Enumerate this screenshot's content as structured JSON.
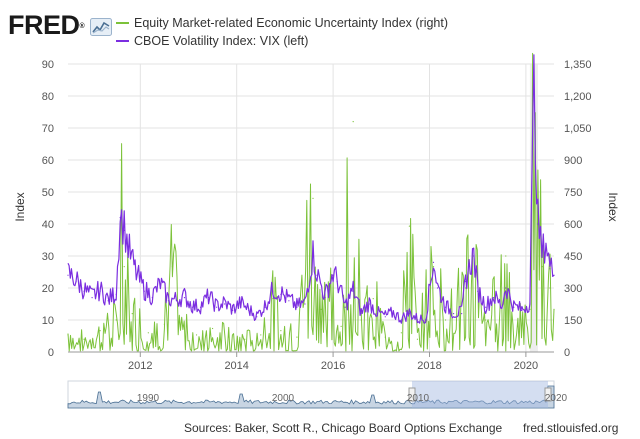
{
  "brand": {
    "logo_text": "FRED",
    "logo_mark": "®"
  },
  "legend": [
    {
      "label": "Equity Market-related Economic Uncertainty Index (right)",
      "color": "#7cc23a"
    },
    {
      "label": "CBOE Volatility Index: VIX (left)",
      "color": "#7b2ee0"
    }
  ],
  "footer": {
    "source": "Sources: Baker, Scott R., Chicago Board Options Exchange",
    "site": "fred.stlouisfed.org"
  },
  "chart_data": {
    "type": "line",
    "x_range": [
      "2010-07",
      "2020-08"
    ],
    "x_ticks": [
      "2012",
      "2014",
      "2016",
      "2018",
      "2020"
    ],
    "y_left": {
      "label": "Index",
      "range": [
        0,
        90
      ],
      "ticks": [
        "0",
        "10",
        "20",
        "30",
        "40",
        "50",
        "60",
        "70",
        "80",
        "90"
      ]
    },
    "y_right": {
      "label": "Index",
      "range": [
        0,
        1350
      ],
      "ticks": [
        "0",
        "150",
        "300",
        "450",
        "600",
        "750",
        "900",
        "1,050",
        "1,200",
        "1,350"
      ]
    },
    "grid": true,
    "navigator": {
      "labels": [
        "1990",
        "2000",
        "2010",
        "2020"
      ]
    },
    "series": [
      {
        "name": "CBOE Volatility Index: VIX (left)",
        "axis": "left",
        "color": "#7b2ee0",
        "points": [
          [
            "2010-07",
            24
          ],
          [
            "2010-09",
            22
          ],
          [
            "2010-11",
            19
          ],
          [
            "2011-01",
            17
          ],
          [
            "2011-03",
            19
          ],
          [
            "2011-05",
            16
          ],
          [
            "2011-07",
            18
          ],
          [
            "2011-08",
            42
          ],
          [
            "2011-09",
            38
          ],
          [
            "2011-10",
            32
          ],
          [
            "2011-12",
            24
          ],
          [
            "2012-02",
            19
          ],
          [
            "2012-04",
            17
          ],
          [
            "2012-06",
            21
          ],
          [
            "2012-08",
            16
          ],
          [
            "2012-10",
            16
          ],
          [
            "2012-12",
            17
          ],
          [
            "2013-02",
            14
          ],
          [
            "2013-04",
            14
          ],
          [
            "2013-06",
            17
          ],
          [
            "2013-08",
            14
          ],
          [
            "2013-10",
            15
          ],
          [
            "2013-12",
            13
          ],
          [
            "2014-02",
            15
          ],
          [
            "2014-04",
            13
          ],
          [
            "2014-06",
            11
          ],
          [
            "2014-08",
            14
          ],
          [
            "2014-10",
            19
          ],
          [
            "2014-12",
            18
          ],
          [
            "2015-02",
            16
          ],
          [
            "2015-04",
            14
          ],
          [
            "2015-06",
            15
          ],
          [
            "2015-08",
            30
          ],
          [
            "2015-09",
            24
          ],
          [
            "2015-11",
            17
          ],
          [
            "2016-01",
            24
          ],
          [
            "2016-02",
            22
          ],
          [
            "2016-04",
            14
          ],
          [
            "2016-06",
            19
          ],
          [
            "2016-08",
            12
          ],
          [
            "2016-10",
            15
          ],
          [
            "2016-12",
            12
          ],
          [
            "2017-02",
            11
          ],
          [
            "2017-04",
            12
          ],
          [
            "2017-06",
            10
          ],
          [
            "2017-08",
            12
          ],
          [
            "2017-10",
            10
          ],
          [
            "2017-12",
            10
          ],
          [
            "2018-02",
            28
          ],
          [
            "2018-03",
            20
          ],
          [
            "2018-05",
            14
          ],
          [
            "2018-07",
            12
          ],
          [
            "2018-09",
            12
          ],
          [
            "2018-10",
            22
          ],
          [
            "2018-12",
            30
          ],
          [
            "2019-01",
            19
          ],
          [
            "2019-03",
            14
          ],
          [
            "2019-05",
            17
          ],
          [
            "2019-07",
            14
          ],
          [
            "2019-08",
            20
          ],
          [
            "2019-10",
            14
          ],
          [
            "2019-12",
            13
          ],
          [
            "2020-02",
            15
          ],
          [
            "2020-03",
            82
          ],
          [
            "2020-04",
            40
          ],
          [
            "2020-05",
            30
          ],
          [
            "2020-06",
            34
          ],
          [
            "2020-07",
            26
          ],
          [
            "2020-08",
            24
          ]
        ]
      },
      {
        "name": "Equity Market-related Economic Uncertainty Index (right)",
        "axis": "right",
        "color": "#7cc23a",
        "points": [
          [
            "2010-07",
            80
          ],
          [
            "2010-11",
            60
          ],
          [
            "2011-03",
            100
          ],
          [
            "2011-07",
            150
          ],
          [
            "2011-08",
            900
          ],
          [
            "2011-09",
            400
          ],
          [
            "2011-11",
            180
          ],
          [
            "2012-03",
            90
          ],
          [
            "2012-07",
            130
          ],
          [
            "2012-09",
            400
          ],
          [
            "2012-11",
            120
          ],
          [
            "2013-03",
            80
          ],
          [
            "2013-07",
            110
          ],
          [
            "2013-11",
            70
          ],
          [
            "2014-03",
            60
          ],
          [
            "2014-07",
            80
          ],
          [
            "2014-10",
            250
          ],
          [
            "2014-12",
            100
          ],
          [
            "2015-04",
            70
          ],
          [
            "2015-08",
            720
          ],
          [
            "2015-10",
            200
          ],
          [
            "2016-01",
            300
          ],
          [
            "2016-03",
            120
          ],
          [
            "2016-06",
            1080
          ],
          [
            "2016-08",
            150
          ],
          [
            "2016-11",
            250
          ],
          [
            "2017-02",
            70
          ],
          [
            "2017-06",
            90
          ],
          [
            "2017-08",
            590
          ],
          [
            "2017-10",
            60
          ],
          [
            "2018-02",
            400
          ],
          [
            "2018-05",
            150
          ],
          [
            "2018-10",
            300
          ],
          [
            "2018-12",
            450
          ],
          [
            "2019-03",
            150
          ],
          [
            "2019-06",
            250
          ],
          [
            "2019-08",
            450
          ],
          [
            "2019-11",
            120
          ],
          [
            "2020-02",
            200
          ],
          [
            "2020-03",
            1240
          ],
          [
            "2020-04",
            700
          ],
          [
            "2020-05",
            400
          ],
          [
            "2020-06",
            500
          ],
          [
            "2020-07",
            300
          ],
          [
            "2020-08",
            200
          ]
        ]
      }
    ]
  }
}
